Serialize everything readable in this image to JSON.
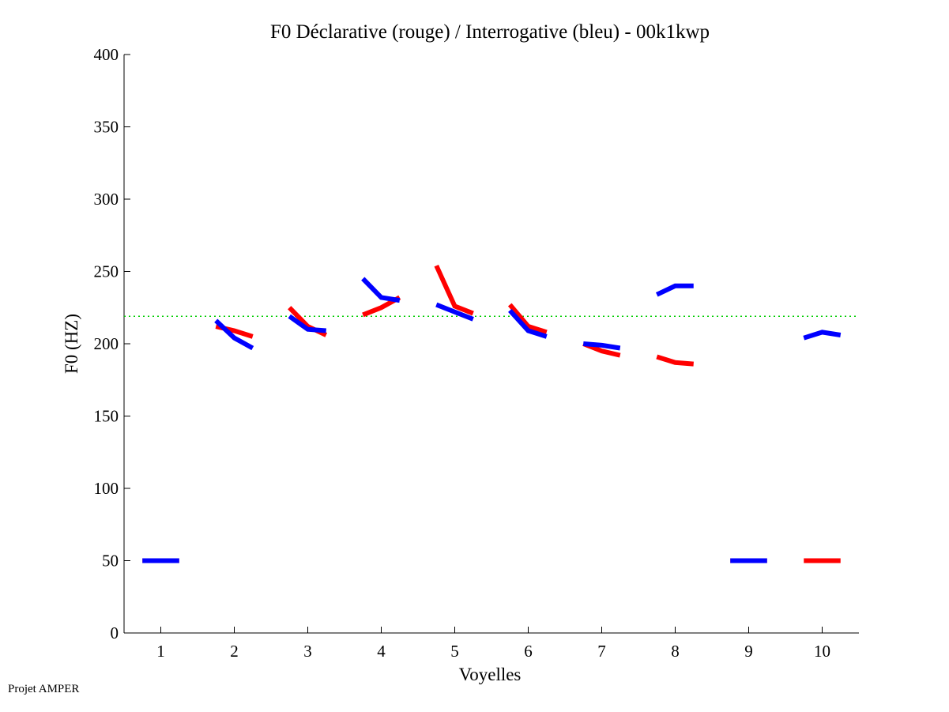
{
  "chart_data": {
    "type": "line",
    "title": "F0 Déclarative (rouge) / Interrogative (bleu) - 00k1kwp",
    "xlabel": "Voyelles",
    "ylabel": "F0 (HZ)",
    "xlim": [
      0.5,
      10.5
    ],
    "ylim": [
      0,
      400
    ],
    "xticks": [
      1,
      2,
      3,
      4,
      5,
      6,
      7,
      8,
      9,
      10
    ],
    "yticks": [
      0,
      50,
      100,
      150,
      200,
      250,
      300,
      350,
      400
    ],
    "grid": false,
    "reference_line": {
      "value": 219,
      "color": "#00cc00",
      "style": "dotted"
    },
    "series": [
      {
        "name": "Déclarative",
        "color": "#ff0000",
        "segments": [
          {
            "vowel": 1,
            "values": [
              50,
              50,
              50
            ]
          },
          {
            "vowel": 2,
            "values": [
              212,
              209,
              205
            ]
          },
          {
            "vowel": 3,
            "values": [
              225,
              212,
              206
            ]
          },
          {
            "vowel": 4,
            "values": [
              220,
              225,
              232
            ]
          },
          {
            "vowel": 5,
            "values": [
              254,
              226,
              221
            ]
          },
          {
            "vowel": 6,
            "values": [
              227,
              212,
              208
            ]
          },
          {
            "vowel": 7,
            "values": [
              200,
              195,
              192
            ]
          },
          {
            "vowel": 8,
            "values": [
              191,
              187,
              186
            ]
          },
          {
            "vowel": 9,
            "values": [
              50,
              50,
              50
            ]
          },
          {
            "vowel": 10,
            "values": [
              50,
              50,
              50
            ]
          }
        ]
      },
      {
        "name": "Interrogative",
        "color": "#0000ff",
        "segments": [
          {
            "vowel": 1,
            "values": [
              50,
              50,
              50
            ]
          },
          {
            "vowel": 2,
            "values": [
              216,
              204,
              197
            ]
          },
          {
            "vowel": 3,
            "values": [
              219,
              210,
              209
            ]
          },
          {
            "vowel": 4,
            "values": [
              245,
              232,
              230
            ]
          },
          {
            "vowel": 5,
            "values": [
              227,
              222,
              217
            ]
          },
          {
            "vowel": 6,
            "values": [
              223,
              209,
              205
            ]
          },
          {
            "vowel": 7,
            "values": [
              200,
              199,
              197
            ]
          },
          {
            "vowel": 8,
            "values": [
              234,
              240,
              240
            ]
          },
          {
            "vowel": 9,
            "values": [
              50,
              50,
              50
            ]
          },
          {
            "vowel": 10,
            "values": [
              204,
              208,
              206
            ]
          }
        ]
      }
    ]
  },
  "footer": "Projet AMPER"
}
